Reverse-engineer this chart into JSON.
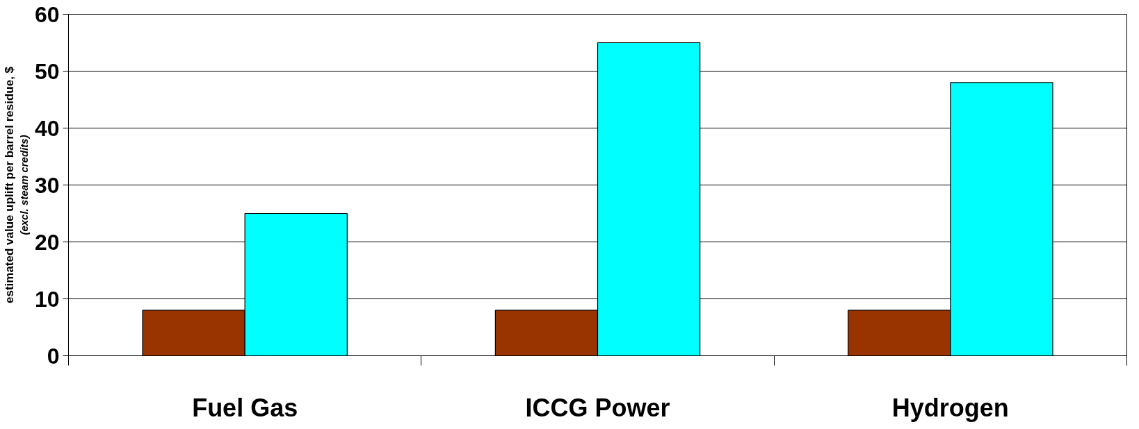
{
  "chart_data": {
    "type": "bar",
    "ylabel": "estimated value uplift per barrel residue, $",
    "annotations": [
      "(excl. steam credits)"
    ],
    "categories": [
      "Fuel Gas",
      "ICCG Power",
      "Hydrogen"
    ],
    "series": [
      {
        "color": "#993300",
        "values": [
          8,
          8,
          8
        ]
      },
      {
        "color": "#00ffff",
        "values": [
          25,
          55,
          48
        ]
      }
    ],
    "ylim": [
      0,
      60
    ],
    "yticks": [
      0,
      10,
      20,
      30,
      40,
      50,
      60
    ],
    "grid": "y"
  }
}
